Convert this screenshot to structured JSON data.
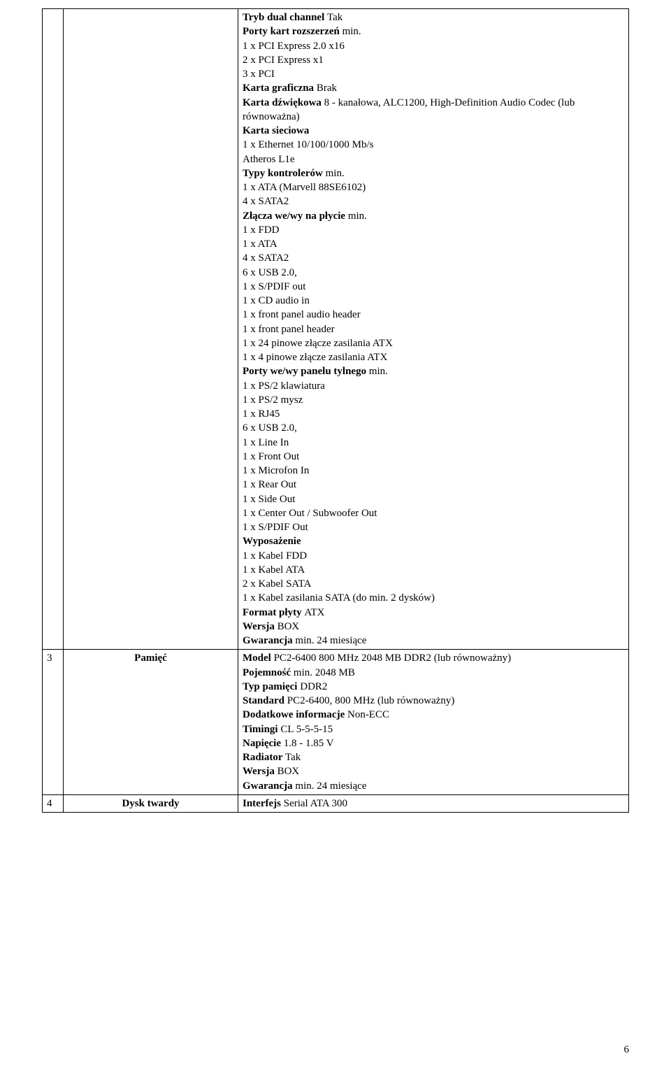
{
  "page_number": "6",
  "rows": {
    "r0": {
      "num": "",
      "name": "",
      "lines": [
        {
          "b": "Tryb dual channel ",
          "t": "Tak"
        },
        {
          "b": "Porty kart rozszerzeń ",
          "t": "min."
        },
        {
          "b": "",
          "t": "1 x PCI Express 2.0 x16"
        },
        {
          "b": "",
          "t": "2 x PCI Express x1"
        },
        {
          "b": "",
          "t": "3 x PCI"
        },
        {
          "b": "Karta graficzna ",
          "t": "Brak"
        },
        {
          "b": "Karta dźwiękowa ",
          "t": "8 - kanałowa, ALC1200, High-Definition Audio Codec (lub równoważna)"
        },
        {
          "b": "Karta sieciowa",
          "t": ""
        },
        {
          "b": "",
          "t": "1 x Ethernet 10/100/1000 Mb/s"
        },
        {
          "b": "",
          "t": "Atheros L1e"
        },
        {
          "b": "Typy kontrolerów ",
          "t": "min."
        },
        {
          "b": "",
          "t": "1 x ATA (Marvell 88SE6102)"
        },
        {
          "b": "",
          "t": "4 x SATA2"
        },
        {
          "b": "Złącza we/wy na płycie ",
          "t": "min."
        },
        {
          "b": "",
          "t": "1 x FDD"
        },
        {
          "b": "",
          "t": "1 x ATA"
        },
        {
          "b": "",
          "t": "4 x SATA2"
        },
        {
          "b": "",
          "t": "6 x USB 2.0,"
        },
        {
          "b": "",
          "t": "1 x S/PDIF out"
        },
        {
          "b": "",
          "t": "1 x CD audio in"
        },
        {
          "b": "",
          "t": "1 x front panel audio header"
        },
        {
          "b": "",
          "t": "1 x front panel header"
        },
        {
          "b": "",
          "t": "1 x 24 pinowe złącze zasilania ATX"
        },
        {
          "b": "",
          "t": "1 x 4 pinowe złącze zasilania ATX"
        },
        {
          "b": "Porty we/wy panelu tylnego ",
          "t": "min."
        },
        {
          "b": "",
          "t": "1 x PS/2 klawiatura"
        },
        {
          "b": "",
          "t": "1 x PS/2 mysz"
        },
        {
          "b": "",
          "t": "1 x RJ45"
        },
        {
          "b": "",
          "t": "6 x USB 2.0,"
        },
        {
          "b": "",
          "t": "1 x Line In"
        },
        {
          "b": "",
          "t": "1 x Front Out"
        },
        {
          "b": "",
          "t": "1 x Microfon In"
        },
        {
          "b": "",
          "t": "1 x Rear Out"
        },
        {
          "b": "",
          "t": "1 x Side Out"
        },
        {
          "b": "",
          "t": "1 x Center Out / Subwoofer Out"
        },
        {
          "b": "",
          "t": "1 x S/PDIF Out"
        },
        {
          "b": "Wyposażenie",
          "t": ""
        },
        {
          "b": "",
          "t": "1 x Kabel FDD"
        },
        {
          "b": "",
          "t": "1 x Kabel ATA"
        },
        {
          "b": "",
          "t": "2 x Kabel SATA"
        },
        {
          "b": "",
          "t": "1 x Kabel zasilania SATA (do min. 2 dysków)"
        },
        {
          "b": "Format płyty ",
          "t": "ATX"
        },
        {
          "b": "Wersja ",
          "t": "BOX"
        },
        {
          "b": "Gwarancja ",
          "t": "min. 24  miesiące"
        }
      ]
    },
    "r1": {
      "num": "3",
      "name": "Pamięć",
      "lines": [
        {
          "b": "Model ",
          "t": "PC2-6400 800 MHz 2048 MB DDR2 (lub równoważny)"
        },
        {
          "b": "Pojemność ",
          "t": "min. 2048 MB"
        },
        {
          "b": "Typ pamięci ",
          "t": "DDR2"
        },
        {
          "b": "Standard ",
          "t": "PC2-6400, 800 MHz (lub równoważny)"
        },
        {
          "b": "Dodatkowe informacje ",
          "t": "Non-ECC"
        },
        {
          "b": "Timingi ",
          "t": "CL 5-5-5-15"
        },
        {
          "b": "Napięcie ",
          "t": "1.8 - 1.85 V"
        },
        {
          "b": "Radiator ",
          "t": "Tak"
        },
        {
          "b": "Wersja ",
          "t": "BOX"
        },
        {
          "b": "Gwarancja ",
          "t": "min. 24 miesiące"
        }
      ]
    },
    "r2": {
      "num": "4",
      "name": "Dysk twardy",
      "lines": [
        {
          "b": "Interfejs ",
          "t": "Serial ATA 300"
        }
      ]
    }
  }
}
